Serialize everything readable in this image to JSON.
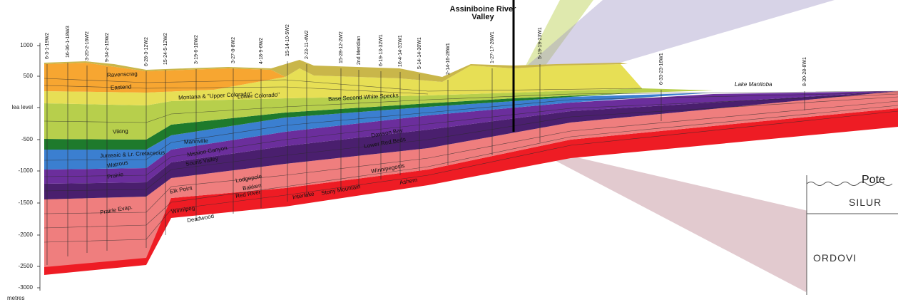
{
  "axis": {
    "ticks": [
      "1000",
      "500",
      "lea level",
      "-500",
      "-1000",
      "-1500",
      "-2000",
      "-2500",
      "-3000"
    ],
    "units": "metres"
  },
  "wells": [
    "6-3-1-19W2",
    "16-36-1-18W3",
    "3-20-2-16W2",
    "9-34-2-15W2",
    "6-28-3-12W2",
    "15-24-5-12W2",
    "3-19-6-10W2",
    "3-27-8-8W2",
    "4-18-9-6W2",
    "15-14-10-5W2",
    "2-23-11-4W2",
    "15-28-12-2W2",
    "2nd Meridian",
    "6-19-13-32W1",
    "16-4-14-31W1",
    "5-14-14-30W1",
    "2-14-16-28W1",
    "1-27-17-26W1",
    "5-19-19-23W1",
    "6-33-23-16W1",
    "8-30-28-8W1"
  ],
  "labels": {
    "river": "Assiniboine River Valley",
    "lake": "Lake Manitoba",
    "pote": "Pote",
    "silurian": "SILUR",
    "ordovician": "ORDOVI"
  },
  "units": [
    "Ravenscrag",
    "Eastend",
    "Montana & \"Upper Colorado\"",
    "\"Lower Colorado\"",
    "Base Second White Specks",
    "Viking",
    "Mannville",
    "Jurassic & Lr. Cretaceous",
    "Watrous",
    "Prairie",
    "Winnipegosis",
    "Ashern",
    "Dawson Bay",
    "Souris Valley",
    "Mission Canyon",
    "Lodgepole",
    "Bakken",
    "Stony Mountain",
    "Red River",
    "Interlake",
    "Elk Point",
    "Winnipeg",
    "Deadwood",
    "Lower Red Beds",
    "Prairie Evap."
  ],
  "colors": {
    "upper": "#f7a631",
    "yellow": "#e7df55",
    "lightgreen": "#b7cf4c",
    "green": "#1e7a2c",
    "blue": "#3b7fd0",
    "purple": "#6b2e9c",
    "darkpurple": "#4a1f6e",
    "pink": "#ef7e7e",
    "red": "#ee1c24"
  }
}
